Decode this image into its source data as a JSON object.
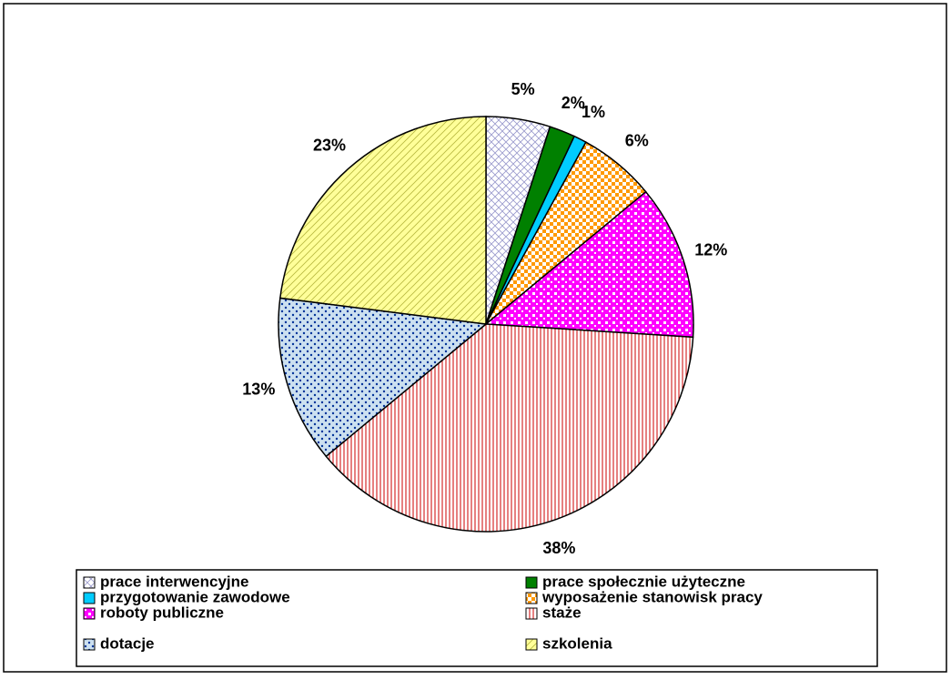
{
  "chart_data": {
    "type": "pie",
    "categories": [
      "prace interwencyjne",
      "prace społecznie użyteczne",
      "przygotowanie zawodowe",
      "wyposażenie stanowisk pracy",
      "roboty publiczne",
      "staże",
      "dotacje",
      "szkolenia"
    ],
    "values": [
      5,
      2,
      1,
      6,
      12,
      38,
      13,
      23
    ],
    "value_labels": [
      "5%",
      "2%",
      "1%",
      "6%",
      "12%",
      "38%",
      "13%",
      "23%"
    ],
    "colors": [
      "#9999cc",
      "#008000",
      "#00ccff",
      "#ff9900",
      "#ff00ff",
      "#cc0000",
      "#003399",
      "#ffff99"
    ],
    "legend": "bottom"
  }
}
